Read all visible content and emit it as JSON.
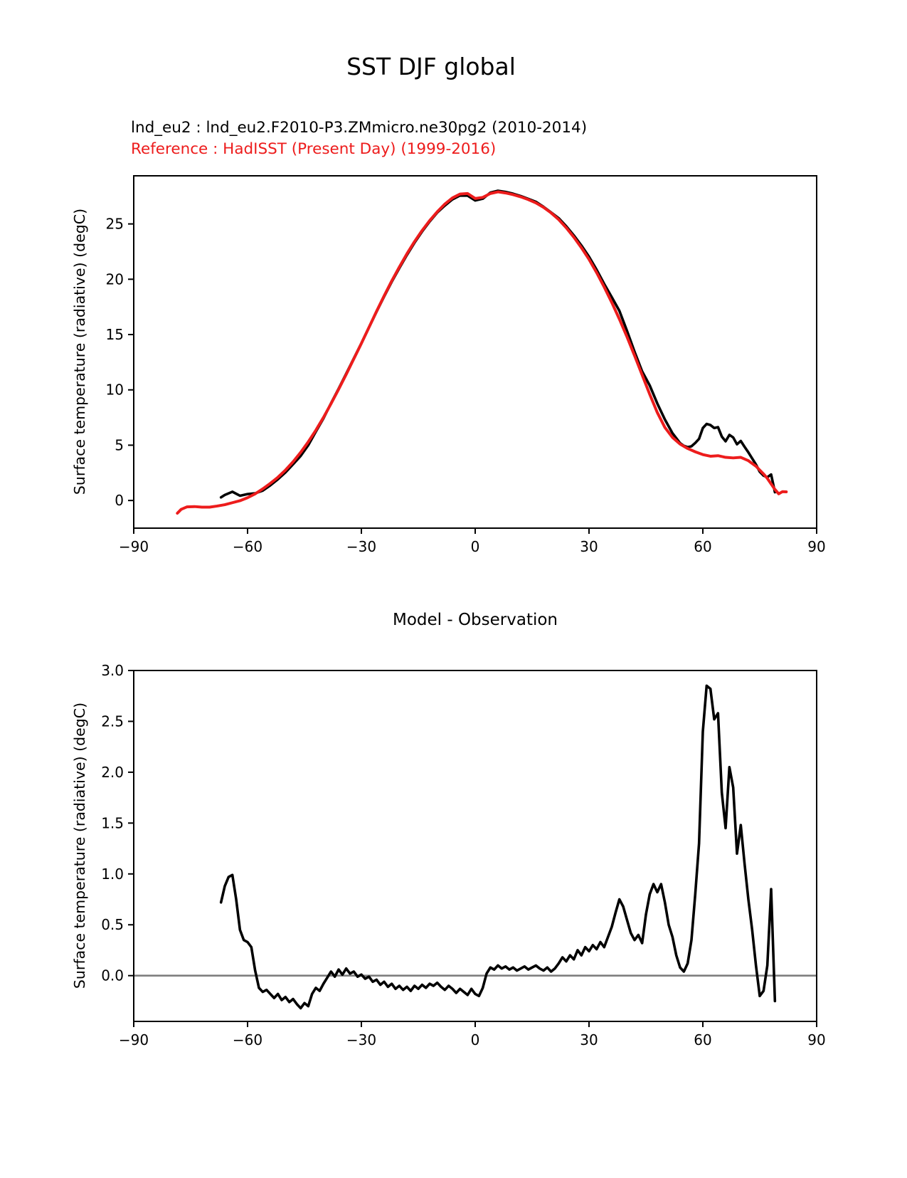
{
  "figure": {
    "suptitle": "SST DJF global",
    "model_label": "lnd_eu2 : lnd_eu2.F2010-P3.ZMmicro.ne30pg2 (2010-2014)",
    "reference_label": "Reference : HadISST (Present Day) (1999-2016)",
    "colors": {
      "model": "#000000",
      "reference": "#ed1c1c",
      "zero_line": "#7f7f7f",
      "spine": "#000000"
    }
  },
  "chart_data": [
    {
      "type": "line",
      "title": "",
      "xlabel": "",
      "ylabel": "Surface temperature (radiative) (degC)",
      "xlim": [
        -90,
        90
      ],
      "ylim": [
        -2.5,
        29.35
      ],
      "grid": false,
      "legend_position": "above-left",
      "xticks": [
        -90,
        -60,
        -30,
        0,
        30,
        60,
        90
      ],
      "xticklabels": [
        "−90",
        "−60",
        "−30",
        "0",
        "30",
        "60",
        "90"
      ],
      "yticks": [
        0,
        5,
        10,
        15,
        20,
        25
      ],
      "yticklabels": [
        "0",
        "5",
        "10",
        "15",
        "20",
        "25"
      ],
      "series": [
        {
          "name": "lnd_eu2 : lnd_eu2.F2010-P3.ZMmicro.ne30pg2 (2010-2014)",
          "color": "#000000",
          "width": 3.6,
          "x": [
            -67,
            -66,
            -64,
            -62,
            -60,
            -58,
            -56,
            -54,
            -52,
            -50,
            -48,
            -46,
            -44,
            -42,
            -40,
            -38,
            -36,
            -34,
            -32,
            -30,
            -28,
            -26,
            -24,
            -22,
            -20,
            -18,
            -16,
            -14,
            -12,
            -10,
            -8,
            -6,
            -4,
            -2,
            0,
            2,
            4,
            6,
            8,
            10,
            12,
            14,
            16,
            18,
            20,
            22,
            24,
            26,
            28,
            30,
            32,
            34,
            36,
            38,
            40,
            42,
            44,
            46,
            48,
            50,
            52,
            54,
            55,
            56,
            57,
            58,
            59,
            60,
            61,
            62,
            63,
            64,
            65,
            66,
            67,
            68,
            69,
            70,
            71,
            72,
            73,
            74,
            75,
            76,
            77,
            78,
            79
          ],
          "y": [
            0.28,
            0.5,
            0.79,
            0.43,
            0.58,
            0.65,
            0.89,
            1.37,
            1.92,
            2.54,
            3.27,
            4.03,
            5.0,
            6.23,
            7.42,
            8.79,
            10.11,
            11.47,
            12.84,
            14.21,
            15.64,
            17.06,
            18.44,
            19.77,
            21.0,
            22.19,
            23.3,
            24.31,
            25.22,
            26.03,
            26.66,
            27.22,
            27.57,
            27.56,
            27.12,
            27.28,
            27.83,
            28.0,
            27.89,
            27.73,
            27.52,
            27.26,
            27.0,
            26.55,
            26.04,
            25.52,
            24.79,
            23.96,
            23.05,
            22.04,
            20.86,
            19.58,
            18.38,
            17.15,
            15.35,
            13.45,
            11.67,
            10.4,
            8.77,
            7.32,
            6.08,
            5.18,
            4.94,
            4.82,
            4.9,
            5.2,
            5.57,
            6.55,
            6.92,
            6.82,
            6.55,
            6.63,
            5.78,
            5.35,
            5.93,
            5.7,
            5.08,
            5.38,
            4.85,
            4.35,
            3.8,
            3.25,
            2.6,
            2.25,
            2.1,
            2.35,
            0.75
          ]
        },
        {
          "name": "Reference : HadISST (Present Day) (1999-2016)",
          "color": "#ed1c1c",
          "width": 4.0,
          "x": [
            -78.5,
            -77.5,
            -76,
            -74,
            -72,
            -70,
            -68,
            -66,
            -64,
            -62,
            -60,
            -58,
            -56,
            -54,
            -52,
            -50,
            -48,
            -46,
            -44,
            -42,
            -40,
            -38,
            -36,
            -34,
            -32,
            -30,
            -28,
            -26,
            -24,
            -22,
            -20,
            -18,
            -16,
            -14,
            -12,
            -10,
            -8,
            -6,
            -4,
            -2,
            0,
            2,
            4,
            6,
            8,
            10,
            12,
            14,
            16,
            18,
            20,
            22,
            24,
            26,
            28,
            30,
            32,
            34,
            36,
            38,
            40,
            42,
            44,
            46,
            48,
            50,
            52,
            54,
            56,
            58,
            60,
            62,
            64,
            66,
            68,
            70,
            72,
            74,
            76,
            77,
            78,
            79,
            80,
            81,
            82
          ],
          "y": [
            -1.15,
            -0.8,
            -0.58,
            -0.55,
            -0.6,
            -0.6,
            -0.5,
            -0.38,
            -0.2,
            -0.02,
            0.25,
            0.6,
            1.05,
            1.55,
            2.1,
            2.75,
            3.5,
            4.35,
            5.3,
            6.35,
            7.5,
            8.75,
            10.05,
            11.4,
            12.8,
            14.2,
            15.65,
            17.1,
            18.5,
            19.85,
            21.1,
            22.3,
            23.4,
            24.4,
            25.3,
            26.1,
            26.8,
            27.35,
            27.7,
            27.75,
            27.3,
            27.4,
            27.75,
            27.9,
            27.8,
            27.65,
            27.45,
            27.2,
            26.9,
            26.5,
            26.0,
            25.4,
            24.65,
            23.8,
            22.85,
            21.8,
            20.6,
            19.3,
            17.9,
            16.4,
            14.8,
            13.1,
            11.35,
            9.6,
            7.95,
            6.6,
            5.7,
            5.1,
            4.7,
            4.4,
            4.15,
            4.0,
            4.05,
            3.9,
            3.85,
            3.9,
            3.6,
            3.1,
            2.4,
            2.0,
            1.5,
            1.0,
            0.6,
            0.8,
            0.78
          ]
        }
      ]
    },
    {
      "type": "line",
      "title": "Model - Observation",
      "xlabel": "",
      "ylabel": "Surface temperature (radiative) (degC)",
      "xlim": [
        -90,
        90
      ],
      "ylim": [
        -0.45,
        3.0
      ],
      "grid": false,
      "zero_line": true,
      "xticks": [
        -90,
        -60,
        -30,
        0,
        30,
        60,
        90
      ],
      "xticklabels": [
        "−90",
        "−60",
        "−30",
        "0",
        "30",
        "60",
        "90"
      ],
      "yticks": [
        0.0,
        0.5,
        1.0,
        1.5,
        2.0,
        2.5,
        3.0
      ],
      "yticklabels": [
        "0.0",
        "0.5",
        "1.0",
        "1.5",
        "2.0",
        "2.5",
        "3.0"
      ],
      "series": [
        {
          "name": "Model - Observation",
          "color": "#000000",
          "width": 3.6,
          "x": [
            -67,
            -66,
            -65,
            -64,
            -63,
            -62,
            -61,
            -60,
            -59,
            -58,
            -57,
            -56,
            -55,
            -54,
            -53,
            -52,
            -51,
            -50,
            -49,
            -48,
            -47,
            -46,
            -45,
            -44,
            -43,
            -42,
            -41,
            -40,
            -39,
            -38,
            -37,
            -36,
            -35,
            -34,
            -33,
            -32,
            -31,
            -30,
            -29,
            -28,
            -27,
            -26,
            -25,
            -24,
            -23,
            -22,
            -21,
            -20,
            -19,
            -18,
            -17,
            -16,
            -15,
            -14,
            -13,
            -12,
            -11,
            -10,
            -9,
            -8,
            -7,
            -6,
            -5,
            -4,
            -3,
            -2,
            -1,
            0,
            1,
            2,
            3,
            4,
            5,
            6,
            7,
            8,
            9,
            10,
            11,
            12,
            13,
            14,
            15,
            16,
            17,
            18,
            19,
            20,
            21,
            22,
            23,
            24,
            25,
            26,
            27,
            28,
            29,
            30,
            31,
            32,
            33,
            34,
            35,
            36,
            37,
            38,
            39,
            40,
            41,
            42,
            43,
            44,
            45,
            46,
            47,
            48,
            49,
            50,
            51,
            52,
            53,
            54,
            55,
            56,
            57,
            58,
            59,
            60,
            61,
            62,
            63,
            64,
            65,
            66,
            67,
            68,
            69,
            70,
            71,
            72,
            73,
            74,
            75,
            76,
            77,
            78,
            79
          ],
          "y": [
            0.72,
            0.88,
            0.97,
            0.99,
            0.75,
            0.45,
            0.35,
            0.33,
            0.28,
            0.05,
            -0.12,
            -0.16,
            -0.14,
            -0.18,
            -0.22,
            -0.18,
            -0.24,
            -0.21,
            -0.26,
            -0.23,
            -0.28,
            -0.32,
            -0.27,
            -0.3,
            -0.18,
            -0.12,
            -0.15,
            -0.08,
            -0.02,
            0.04,
            -0.01,
            0.06,
            0.01,
            0.07,
            0.02,
            0.04,
            -0.01,
            0.01,
            -0.03,
            -0.01,
            -0.06,
            -0.04,
            -0.09,
            -0.06,
            -0.11,
            -0.08,
            -0.13,
            -0.1,
            -0.14,
            -0.11,
            -0.15,
            -0.1,
            -0.13,
            -0.09,
            -0.12,
            -0.08,
            -0.1,
            -0.07,
            -0.11,
            -0.14,
            -0.1,
            -0.13,
            -0.17,
            -0.13,
            -0.16,
            -0.19,
            -0.13,
            -0.18,
            -0.2,
            -0.12,
            0.02,
            0.08,
            0.06,
            0.1,
            0.07,
            0.09,
            0.06,
            0.08,
            0.05,
            0.07,
            0.09,
            0.06,
            0.08,
            0.1,
            0.07,
            0.05,
            0.08,
            0.04,
            0.07,
            0.12,
            0.18,
            0.14,
            0.2,
            0.16,
            0.25,
            0.2,
            0.28,
            0.24,
            0.3,
            0.26,
            0.33,
            0.28,
            0.38,
            0.48,
            0.62,
            0.75,
            0.68,
            0.55,
            0.42,
            0.35,
            0.4,
            0.32,
            0.6,
            0.8,
            0.9,
            0.82,
            0.9,
            0.72,
            0.5,
            0.38,
            0.2,
            0.08,
            0.04,
            0.12,
            0.35,
            0.8,
            1.3,
            2.4,
            2.85,
            2.82,
            2.52,
            2.58,
            1.8,
            1.45,
            2.05,
            1.85,
            1.2,
            1.48,
            1.1,
            0.75,
            0.45,
            0.1,
            -0.2,
            -0.15,
            0.1,
            0.85,
            -0.25
          ]
        }
      ]
    }
  ]
}
